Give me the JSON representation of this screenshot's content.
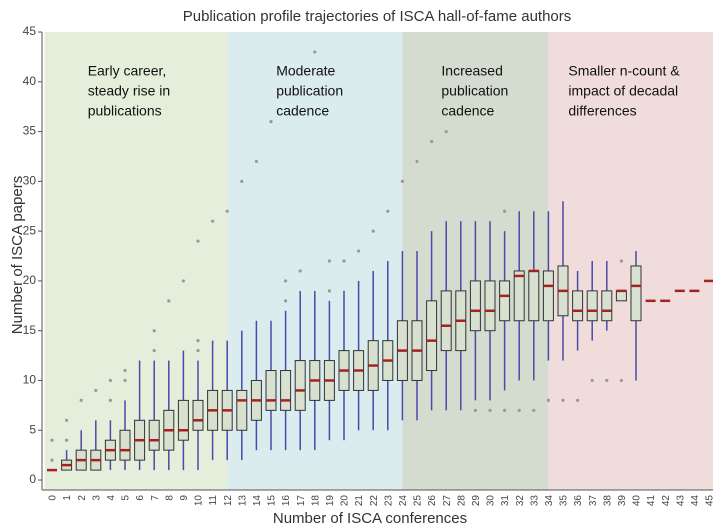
{
  "chart_data": {
    "type": "box",
    "title": "Publication profile trajectories of ISCA hall-of-fame authors",
    "xlabel": "Number of ISCA conferences",
    "ylabel": "Number of ISCA papers",
    "categories": [
      "0",
      "1",
      "2",
      "3",
      "4",
      "5",
      "6",
      "7",
      "8",
      "9",
      "10",
      "11",
      "12",
      "13",
      "14",
      "15",
      "16",
      "17",
      "18",
      "19",
      "20",
      "21",
      "22",
      "23",
      "24",
      "25",
      "26",
      "27",
      "28",
      "29",
      "30",
      "31",
      "32",
      "33",
      "34",
      "35",
      "36",
      "37",
      "38",
      "39",
      "40",
      "41",
      "42",
      "43",
      "44",
      "45"
    ],
    "low": [
      1,
      1,
      1,
      1,
      1,
      1,
      1,
      1,
      1,
      1,
      1,
      2,
      2,
      2,
      3,
      3,
      3,
      3,
      3,
      4,
      4,
      5,
      5,
      5,
      6,
      6,
      7,
      7,
      7,
      8,
      8,
      9,
      10,
      10,
      12,
      12,
      13,
      14,
      15,
      18,
      10,
      18,
      18,
      19,
      19,
      20
    ],
    "q1": [
      1,
      1,
      1,
      1,
      2,
      2,
      2,
      3,
      3,
      4,
      5,
      5,
      5,
      5,
      6,
      7,
      7,
      7,
      8,
      8,
      9,
      9,
      9,
      10,
      10,
      10,
      11,
      13,
      13,
      15,
      15,
      16,
      16,
      16,
      16,
      16.5,
      16,
      16,
      16,
      18,
      16,
      18,
      18,
      19,
      19,
      20
    ],
    "median": [
      1,
      1.5,
      2,
      2,
      3,
      3,
      4,
      4,
      5,
      5,
      6,
      7,
      7,
      8,
      8,
      8,
      8,
      9,
      10,
      10,
      11,
      11,
      11.5,
      12,
      13,
      13,
      14,
      15.5,
      16,
      17,
      17,
      18.5,
      20.5,
      21,
      19.5,
      19,
      17,
      17,
      17,
      19,
      19.5,
      18,
      18,
      19,
      19,
      20
    ],
    "q3": [
      1,
      2,
      3,
      3,
      4,
      5,
      6,
      6,
      7,
      8,
      8,
      9,
      9,
      9,
      10,
      11,
      11,
      12,
      12,
      12,
      13,
      13,
      14,
      14,
      16,
      16,
      18,
      19,
      19,
      20,
      20,
      20,
      21,
      21,
      21,
      21.5,
      19,
      19,
      19,
      19,
      21.5,
      18,
      18,
      19,
      19,
      20
    ],
    "high": [
      1,
      3,
      5,
      6,
      6,
      8,
      12,
      12,
      12,
      13,
      12,
      14,
      14,
      15,
      16,
      16,
      17,
      19,
      19,
      18,
      19,
      20,
      21,
      22,
      23,
      23,
      25,
      26,
      26,
      26,
      26,
      25,
      27,
      27,
      27,
      28,
      21,
      22,
      22,
      19,
      23,
      18,
      18,
      19,
      19,
      20
    ],
    "outliers": [
      [
        2,
        4
      ],
      [
        4,
        6
      ],
      [
        8
      ],
      [
        9
      ],
      [
        8,
        10
      ],
      [
        10,
        11
      ],
      [],
      [
        13,
        15
      ],
      [
        18
      ],
      [
        20
      ],
      [
        13,
        14,
        24
      ],
      [
        26
      ],
      [
        27
      ],
      [
        30
      ],
      [
        32
      ],
      [
        36
      ],
      [
        18,
        20
      ],
      [
        21
      ],
      [
        43
      ],
      [
        19,
        22
      ],
      [
        22
      ],
      [
        23
      ],
      [
        25
      ],
      [
        27
      ],
      [
        30
      ],
      [
        32
      ],
      [
        34
      ],
      [
        35
      ],
      [],
      [
        7
      ],
      [
        7
      ],
      [
        7,
        27
      ],
      [
        7
      ],
      [
        7
      ],
      [
        8
      ],
      [
        8
      ],
      [
        8
      ],
      [
        10
      ],
      [
        10
      ],
      [
        10,
        22
      ],
      [],
      [],
      [],
      [],
      [],
      []
    ],
    "box_color": "#d8e0d0",
    "whisker_color": "#4a4aa8",
    "median_color": "#a52222",
    "outlier_color": "#999999",
    "ylim": [
      -1,
      45
    ],
    "yticks": [
      0,
      5,
      10,
      15,
      20,
      25,
      30,
      35,
      40,
      45
    ],
    "regions": [
      {
        "lines": [
          "Early career,",
          "steady rise in",
          "publications"
        ],
        "start": -0.5,
        "end": 12,
        "color": "#e4eedb"
      },
      {
        "lines": [
          "Moderate",
          "publication",
          "cadence"
        ],
        "start": 12,
        "end": 24,
        "color": "#dbecee"
      },
      {
        "lines": [
          "Increased",
          "publication",
          "cadence"
        ],
        "start": 24,
        "end": 34,
        "color": "#d4dcd0"
      },
      {
        "lines": [
          "Smaller n-count &",
          "impact of decadal",
          "differences"
        ],
        "start": 34,
        "end": 45.5,
        "color": "#f1dcdc"
      }
    ]
  }
}
